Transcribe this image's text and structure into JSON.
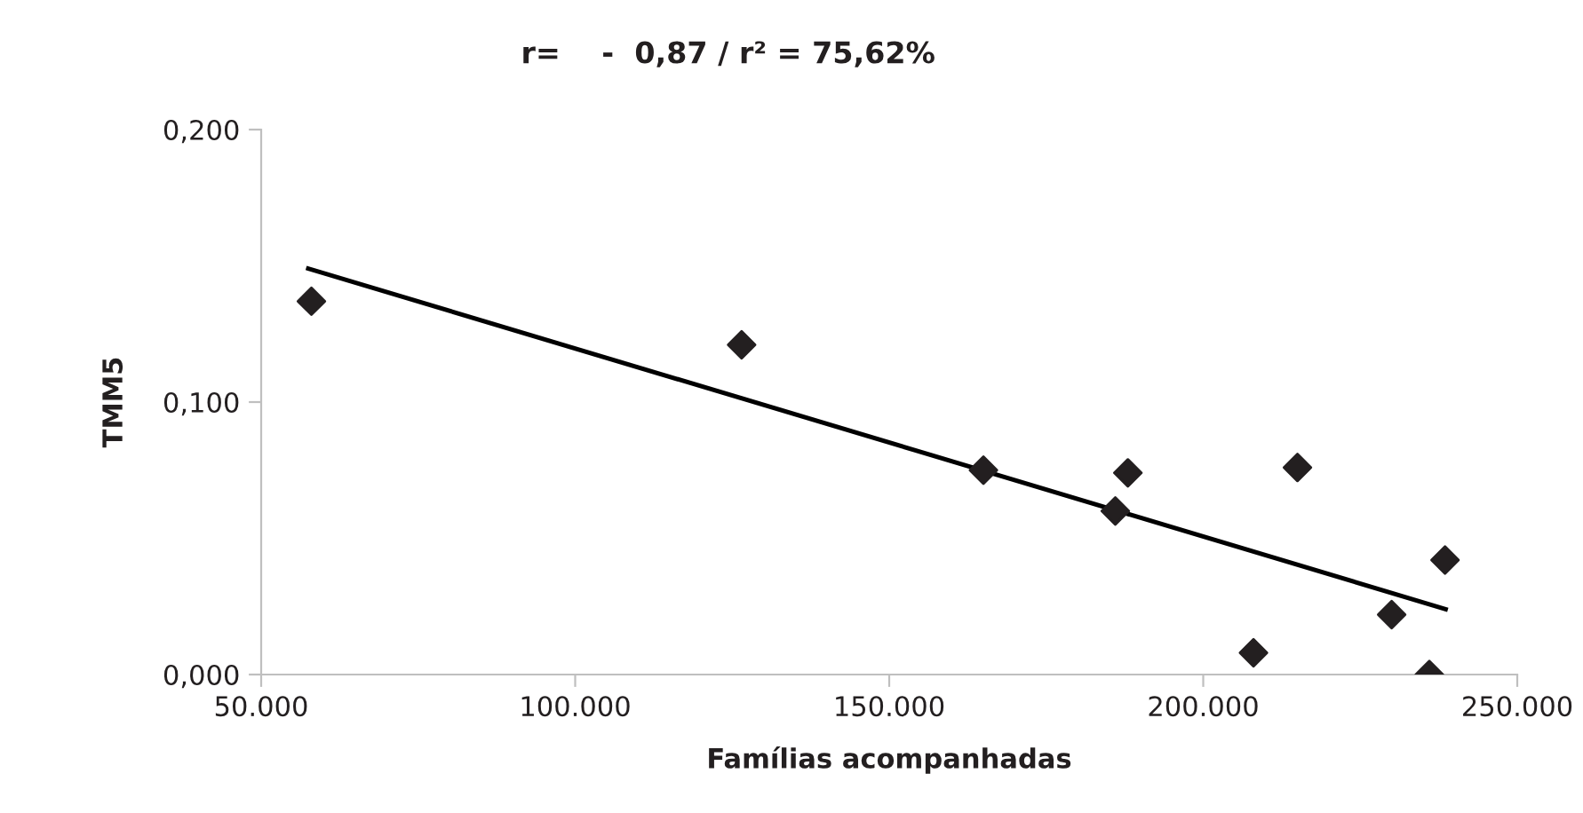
{
  "chart_data": {
    "type": "scatter",
    "title": "r=    -  0,87 / r² = 75,62%",
    "xlabel": "Famílias acompanhadas",
    "ylabel": "TMM5",
    "xlim": [
      50000,
      250000
    ],
    "xticks": [
      {
        "value": 50000,
        "label": "50.000"
      },
      {
        "value": 100000,
        "label": "100.000"
      },
      {
        "value": 150000,
        "label": "150.000"
      },
      {
        "value": 200000,
        "label": "200.000"
      },
      {
        "value": 250000,
        "label": "250.000"
      }
    ],
    "ylim": [
      0,
      0.2
    ],
    "yticks": [
      {
        "value": 0,
        "label": "0,000"
      },
      {
        "value": 0.1,
        "label": "0,100"
      },
      {
        "value": 0.2,
        "label": "0,200"
      }
    ],
    "grid": false,
    "legend": false,
    "marker": "diamond",
    "series": [
      {
        "color": "#231f20",
        "x": [
          58000,
          126500,
          165000,
          188000,
          186000,
          215000,
          208000,
          230000,
          236000,
          238500
        ],
        "values": [
          0.137,
          0.121,
          0.075,
          0.074,
          0.06,
          0.076,
          0.008,
          0.022,
          0.0,
          0.042
        ]
      },
      {
        "type": "line",
        "color": "#000000",
        "x": [
          57500,
          238600
        ],
        "values": [
          0.149,
          0.024
        ],
        "marker": "none"
      }
    ]
  }
}
